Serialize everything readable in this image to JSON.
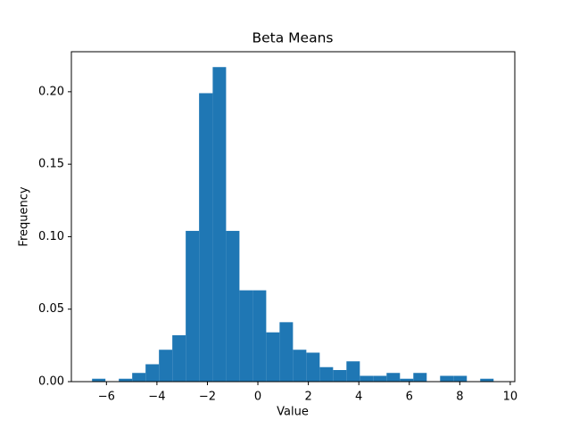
{
  "chart_data": {
    "type": "histogram",
    "title": "Beta Means",
    "x_label": "Value",
    "y_label": "Frequency",
    "color": "#1f77b4",
    "bins": [
      -6.57,
      -6.04,
      -5.51,
      -4.98,
      -4.45,
      -3.92,
      -3.39,
      -2.86,
      -2.33,
      -1.79,
      -1.26,
      -0.73,
      -0.2,
      0.33,
      0.86,
      1.39,
      1.92,
      2.45,
      2.98,
      3.51,
      4.04,
      4.57,
      5.1,
      5.63,
      6.16,
      6.69,
      7.22,
      7.75,
      8.28,
      8.81,
      9.34
    ],
    "values": [
      0.002,
      0,
      0.002,
      0.006,
      0.012,
      0.022,
      0.032,
      0.104,
      0.199,
      0.217,
      0.104,
      0.063,
      0.063,
      0.034,
      0.041,
      0.022,
      0.02,
      0.01,
      0.008,
      0.014,
      0.004,
      0.004,
      0.006,
      0.002,
      0.006,
      0,
      0.004,
      0.004,
      0,
      0.002
    ],
    "xlim": [
      -7.39,
      10.18
    ],
    "xticks": [
      {
        "value": -6,
        "label": "−6"
      },
      {
        "value": -4,
        "label": "−4"
      },
      {
        "value": -2,
        "label": "−2"
      },
      0,
      2,
      4,
      6,
      8,
      10
    ],
    "ylim": [
      0,
      0.2276
    ],
    "yticks": [
      {
        "value": 0,
        "label": "0.00"
      },
      {
        "value": 0.05,
        "label": "0.05"
      },
      {
        "value": 0.1,
        "label": "0.10"
      },
      {
        "value": 0.15,
        "label": "0.15"
      },
      {
        "value": 0.2,
        "label": "0.20"
      }
    ]
  }
}
